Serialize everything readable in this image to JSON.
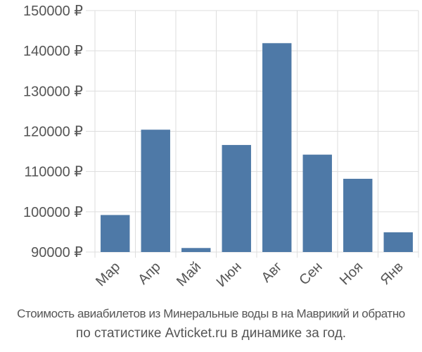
{
  "chart_data": {
    "type": "bar",
    "categories": [
      "Мар",
      "Апр",
      "Май",
      "Июн",
      "Авг",
      "Сен",
      "Ноя",
      "Янв"
    ],
    "values": [
      99200,
      120400,
      91000,
      116600,
      141900,
      114200,
      108200,
      94900
    ],
    "ylim": [
      90000,
      150000
    ],
    "yticks": [
      90000,
      100000,
      110000,
      120000,
      130000,
      140000,
      150000
    ],
    "ytick_labels": [
      "90000 ₽",
      "100000 ₽",
      "110000 ₽",
      "120000 ₽",
      "130000 ₽",
      "140000 ₽",
      "150000 ₽"
    ],
    "bar_color": "#4e79a7",
    "grid": true
  },
  "caption": {
    "line1": "Стоимость авиабилетов из Минеральные воды в на Маврикий и обратно",
    "line2": "по статистике Avticket.ru в динамике за год."
  }
}
